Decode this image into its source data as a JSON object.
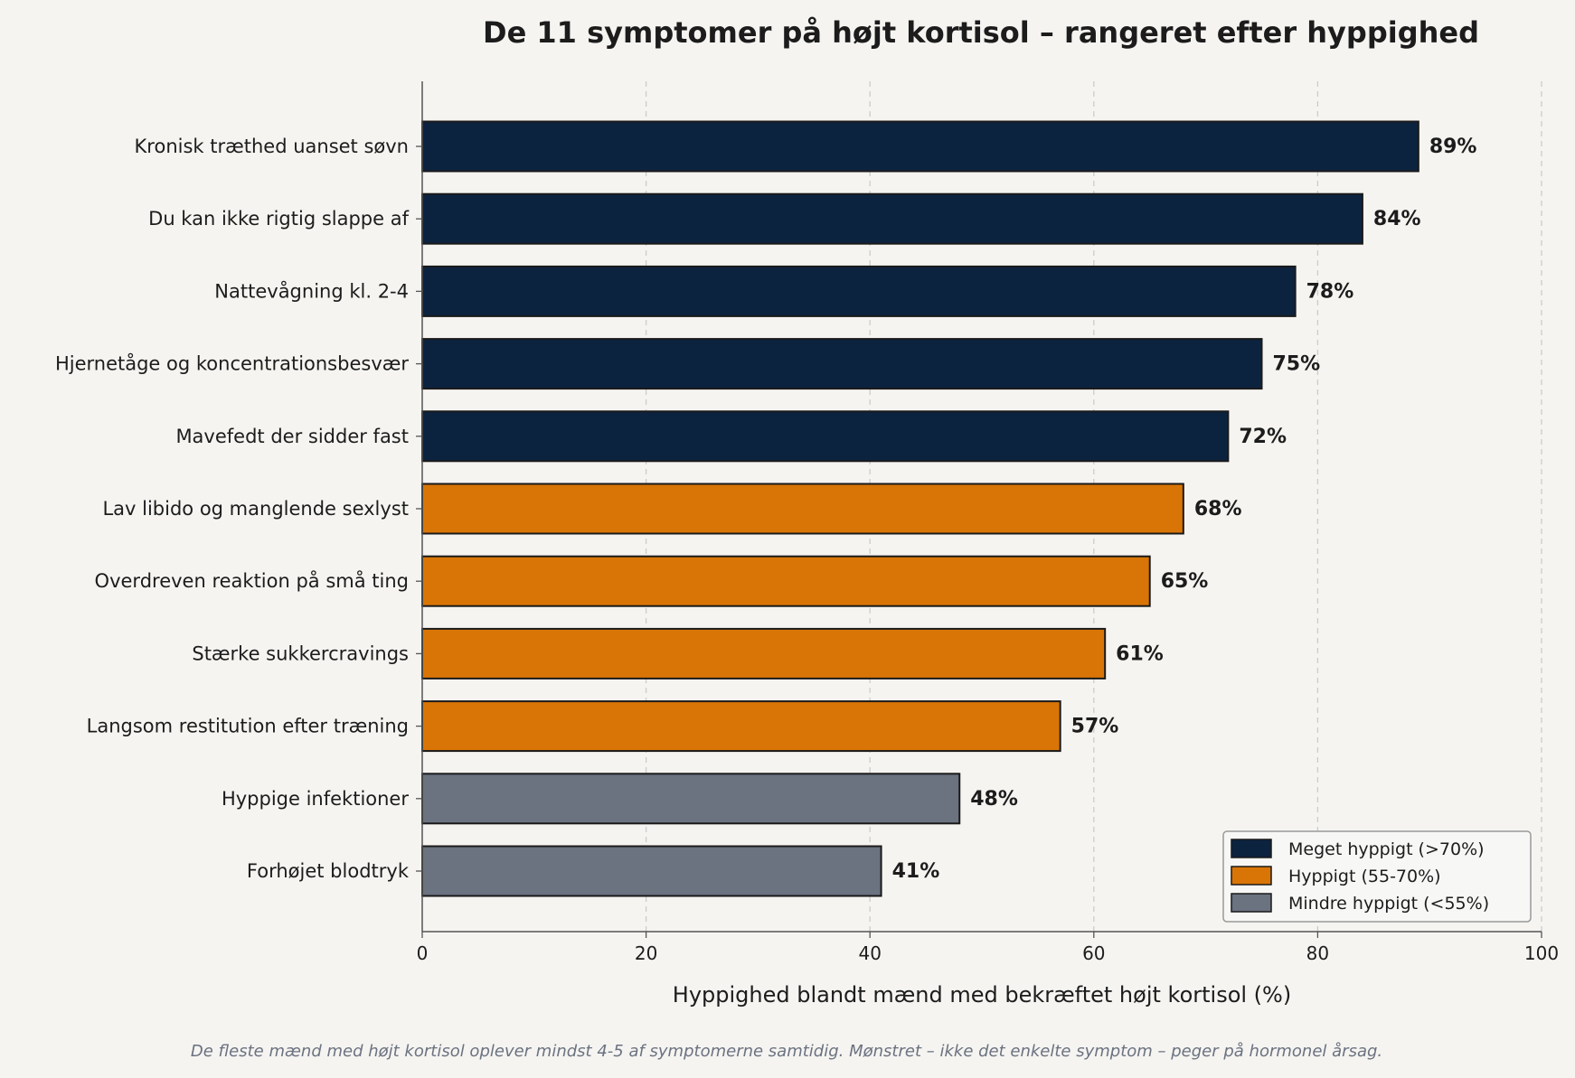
{
  "chart_data": {
    "type": "bar",
    "orientation": "horizontal",
    "title": "De 11 symptomer på højt kortisol – rangeret efter hyppighed",
    "xlabel": "Hyppighed blandt mænd med bekræftet højt kortisol (%)",
    "ylabel": "",
    "xlim": [
      0,
      100
    ],
    "xticks": [
      "0",
      "20",
      "40",
      "60",
      "80",
      "100"
    ],
    "grid": "x, dashed",
    "legend_position": "bottom-right",
    "footnote": "De fleste mænd med højt kortisol oplever mindst 4-5 af symptomerne samtidig. Mønstret – ikke det enkelte symptom – peger på hormonel årsag.",
    "categories": [
      "Kronisk træthed uanset søvn",
      "Du kan ikke rigtig slappe af",
      "Nattevågning kl. 2-4",
      "Hjernetåge og koncentrationsbesvær",
      "Mavefedt der sidder fast",
      "Lav libido og manglende sexlyst",
      "Overdreven reaktion på små ting",
      "Stærke sukkercravings",
      "Langsom restitution efter træning",
      "Hyppige infektioner",
      "Forhøjet blodtryk"
    ],
    "values": [
      89,
      84,
      78,
      75,
      72,
      68,
      65,
      61,
      57,
      48,
      41
    ],
    "value_labels": [
      "89%",
      "84%",
      "78%",
      "75%",
      "72%",
      "68%",
      "65%",
      "61%",
      "57%",
      "48%",
      "41%"
    ],
    "groups": [
      0,
      0,
      0,
      0,
      0,
      1,
      1,
      1,
      1,
      2,
      2
    ],
    "legend": [
      {
        "label": "Meget hyppigt (>70%)",
        "color": "#0c2340"
      },
      {
        "label": "Hyppigt (55-70%)",
        "color": "#d97506"
      },
      {
        "label": "Mindre hyppigt (<55%)",
        "color": "#6b7280"
      }
    ],
    "colors": {
      "background": "#f5f4f1",
      "text": "#1c1c1c",
      "footnote": "#6b7280",
      "grid": "#cccccc",
      "axis": "#555555"
    }
  }
}
